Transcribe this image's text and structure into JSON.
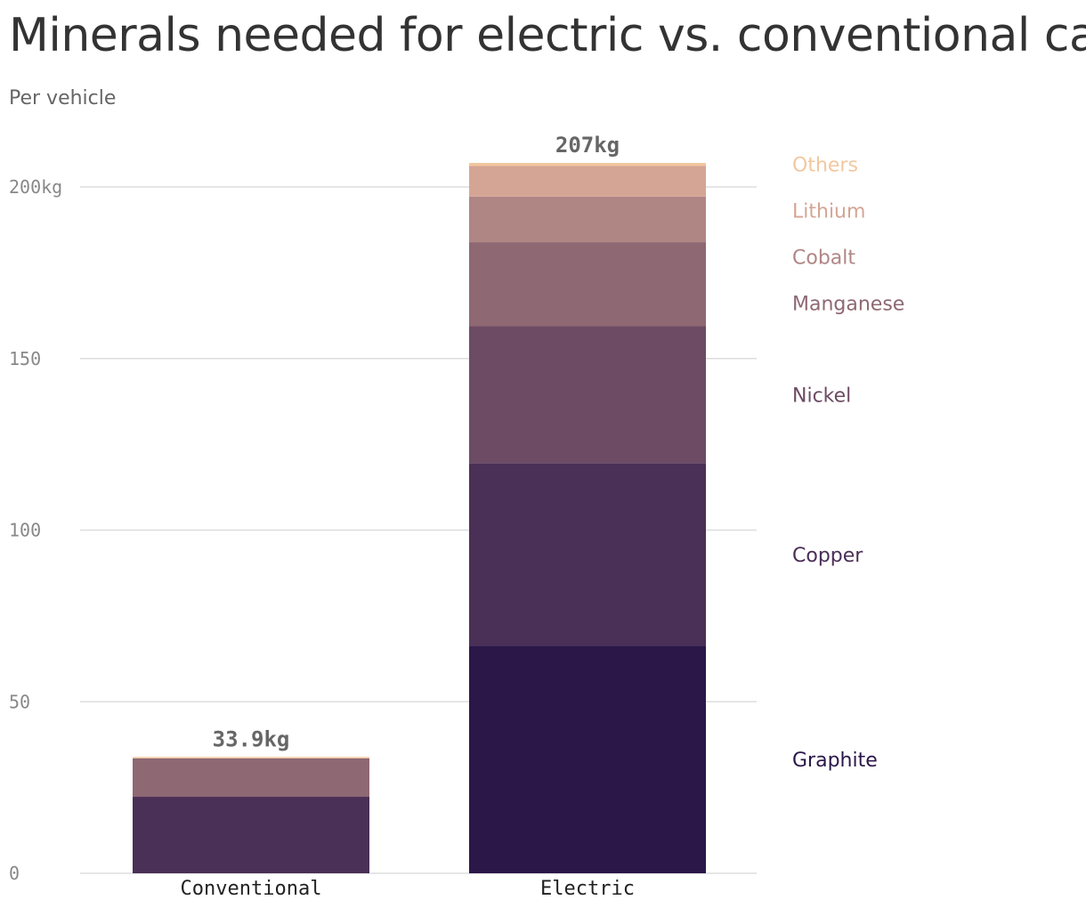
{
  "title": "Minerals needed for electric vs. conventional cars",
  "subtitle": "Per vehicle",
  "chart_data": {
    "type": "bar",
    "stacked": true,
    "title": "Minerals needed for electric vs. conventional cars",
    "subtitle": "Per vehicle",
    "categories": [
      "Conventional",
      "Electric"
    ],
    "ylim": [
      0,
      207
    ],
    "y_ticks": [
      0,
      50,
      100,
      150,
      200
    ],
    "y_tick_labels": [
      "0",
      "50",
      "100",
      "150",
      "200kg"
    ],
    "grid": true,
    "totals": [
      "33.9kg",
      "207kg"
    ],
    "legend_placement": "right",
    "series": [
      {
        "name": "Graphite",
        "values": [
          0,
          66.3
        ],
        "color": "#2b1748"
      },
      {
        "name": "Copper",
        "values": [
          22.3,
          53.2
        ],
        "color": "#4a2f56"
      },
      {
        "name": "Nickel",
        "values": [
          0,
          39.9
        ],
        "color": "#6d4b64"
      },
      {
        "name": "Manganese",
        "values": [
          11.2,
          24.5
        ],
        "color": "#8e6873"
      },
      {
        "name": "Cobalt",
        "values": [
          0,
          13.3
        ],
        "color": "#b08685"
      },
      {
        "name": "Lithium",
        "values": [
          0,
          8.9
        ],
        "color": "#d4a595"
      },
      {
        "name": "Others",
        "values": [
          0.4,
          0.9
        ],
        "color": "#f2c79f"
      }
    ]
  }
}
